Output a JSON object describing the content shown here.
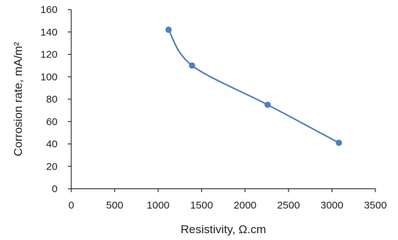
{
  "chart_data": {
    "type": "scatter",
    "title": "",
    "xlabel": "Resistivity, Ω.cm",
    "ylabel": "Corrosion rate, mA/m²",
    "xlim": [
      0,
      3500
    ],
    "ylim": [
      0,
      160
    ],
    "x_ticks": [
      0,
      500,
      1000,
      1500,
      2000,
      2500,
      3000,
      3500
    ],
    "y_ticks": [
      0,
      20,
      40,
      60,
      80,
      100,
      120,
      140,
      160
    ],
    "grid": false,
    "legend": "none",
    "line_style": "smoothed",
    "series": [
      {
        "color": "#4f7fbf",
        "x": [
          1120,
          1390,
          2260,
          3080
        ],
        "y": [
          142,
          110,
          75,
          41
        ]
      }
    ]
  }
}
